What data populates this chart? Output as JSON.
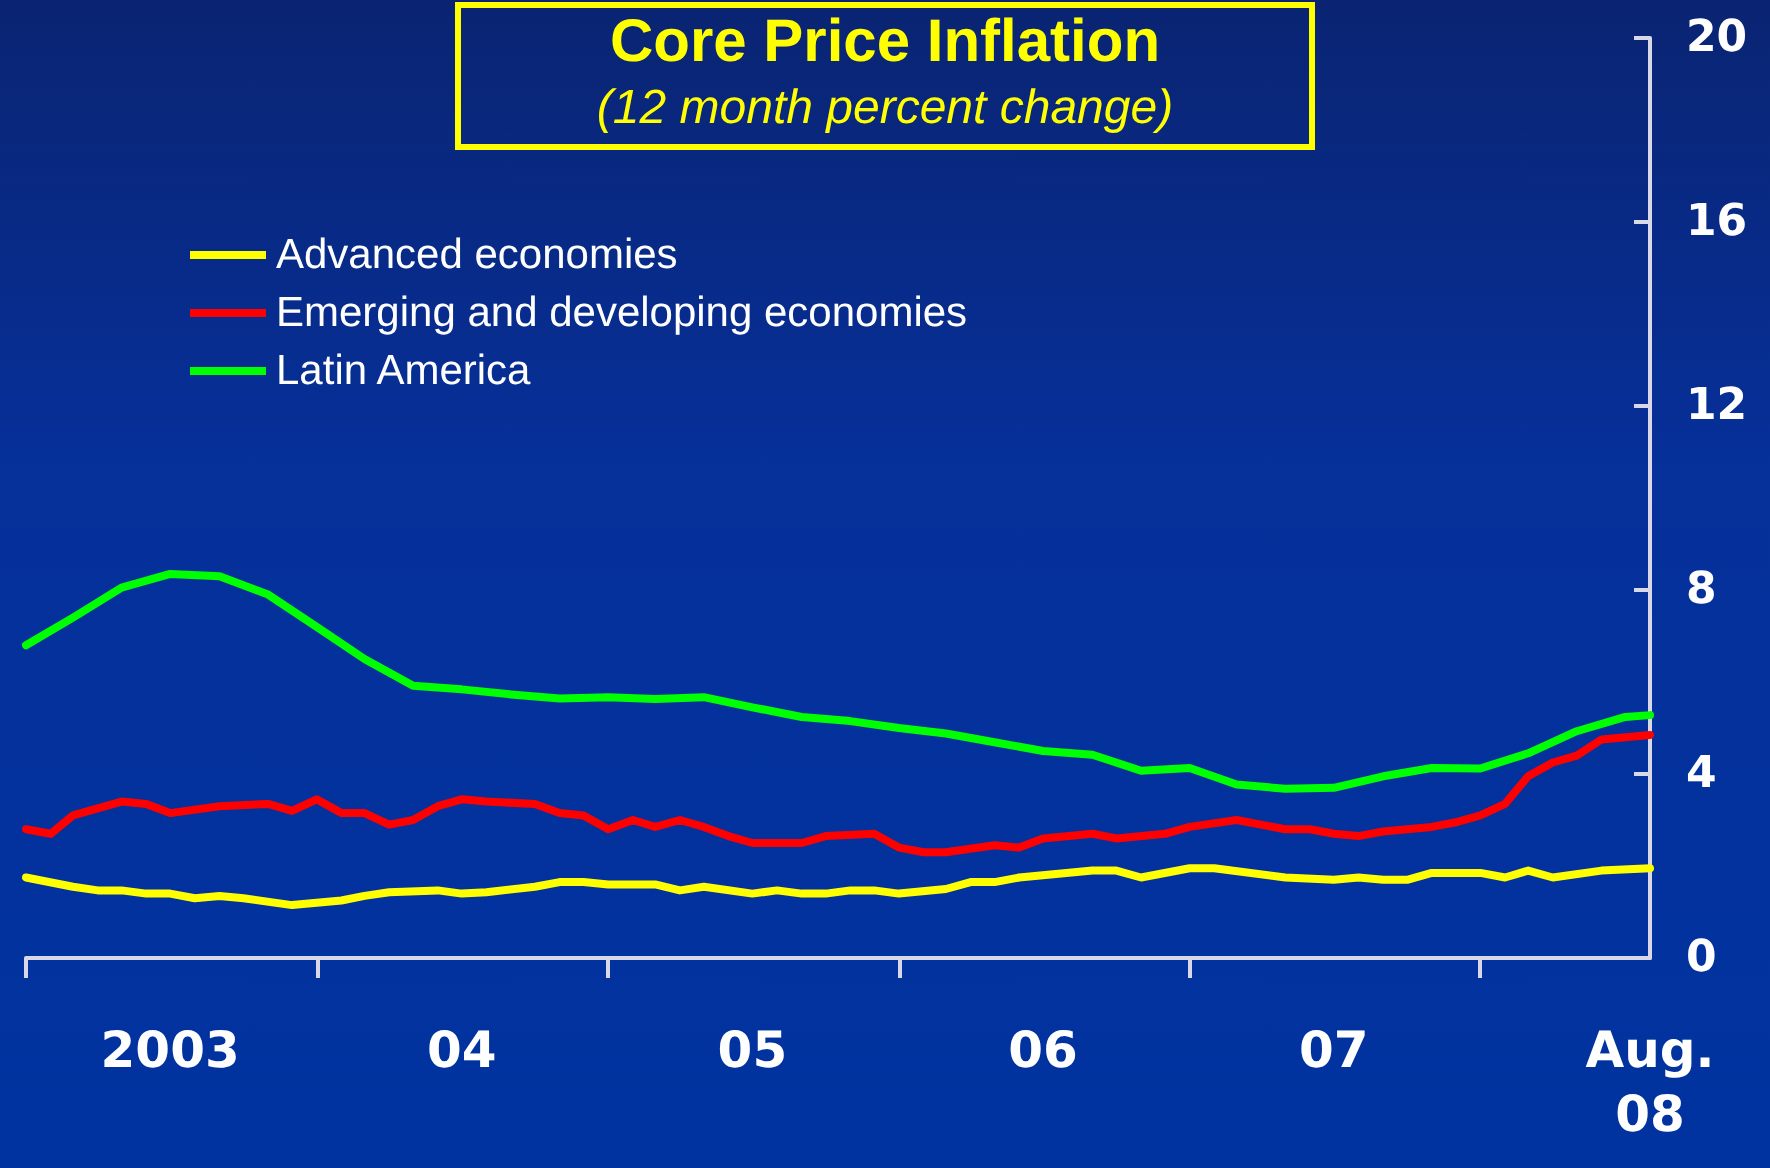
{
  "chart_data": {
    "type": "line",
    "title": "Core Price Inflation",
    "subtitle": "(12 month percent change)",
    "xlim": [
      "2003-01",
      "2008-08"
    ],
    "xticks": [
      {
        "value": "2003-01",
        "label": null
      },
      {
        "value": "2004-01",
        "label": null
      },
      {
        "value": "2005-01",
        "label": null
      },
      {
        "value": "2006-01",
        "label": null
      },
      {
        "value": "2007-01",
        "label": null
      },
      {
        "value": "2008-01",
        "label": null
      },
      {
        "value": "2003-07",
        "label": "2003"
      },
      {
        "value": "2004-07",
        "label": "04"
      },
      {
        "value": "2005-07",
        "label": "05"
      },
      {
        "value": "2006-07",
        "label": "06"
      },
      {
        "value": "2007-07",
        "label": "07"
      },
      {
        "value": "2008-08",
        "label": "Aug. 08"
      }
    ],
    "ylim": [
      0,
      20
    ],
    "yticks": [
      0,
      4,
      8,
      12,
      16,
      20
    ],
    "grid": false,
    "legend": "top left",
    "marker": "none",
    "line_style": "solid",
    "series": [
      {
        "name": "Advanced economies",
        "color": "#ffff00",
        "x": [
          "2003-01",
          "2003-03",
          "2003-04",
          "2003-05",
          "2003-06",
          "2003-07",
          "2003-08",
          "2003-09",
          "2003-10",
          "2003-12",
          "2004-02",
          "2004-03",
          "2004-04",
          "2004-06",
          "2004-07",
          "2004-08",
          "2004-10",
          "2004-11",
          "2004-12",
          "2005-01",
          "2005-03",
          "2005-04",
          "2005-05",
          "2005-07",
          "2005-08",
          "2005-09",
          "2005-10",
          "2005-11",
          "2005-12",
          "2006-01",
          "2006-03",
          "2006-04",
          "2006-05",
          "2006-06",
          "2006-09",
          "2006-10",
          "2006-11",
          "2007-01",
          "2007-02",
          "2007-05",
          "2007-07",
          "2007-08",
          "2007-09",
          "2007-10",
          "2007-11",
          "2008-01",
          "2008-02",
          "2008-03",
          "2008-04",
          "2008-06",
          "2008-08"
        ],
        "values": [
          1.75,
          1.55,
          1.47,
          1.47,
          1.4,
          1.4,
          1.3,
          1.35,
          1.3,
          1.15,
          1.25,
          1.35,
          1.43,
          1.47,
          1.4,
          1.43,
          1.55,
          1.65,
          1.65,
          1.6,
          1.6,
          1.47,
          1.55,
          1.4,
          1.47,
          1.4,
          1.4,
          1.47,
          1.47,
          1.4,
          1.5,
          1.65,
          1.65,
          1.75,
          1.9,
          1.9,
          1.75,
          1.95,
          1.95,
          1.75,
          1.7,
          1.75,
          1.7,
          1.7,
          1.85,
          1.85,
          1.75,
          1.9,
          1.75,
          1.9,
          1.95
        ]
      },
      {
        "name": "Emerging and developing economies",
        "color": "#ff0000",
        "x": [
          "2003-01",
          "2003-02",
          "2003-03",
          "2003-05",
          "2003-06",
          "2003-07",
          "2003-09",
          "2003-11",
          "2003-12",
          "2004-01",
          "2004-02",
          "2004-03",
          "2004-04",
          "2004-05",
          "2004-06",
          "2004-07",
          "2004-08",
          "2004-10",
          "2004-11",
          "2004-12",
          "2005-01",
          "2005-02",
          "2005-03",
          "2005-04",
          "2005-05",
          "2005-06",
          "2005-07",
          "2005-09",
          "2005-10",
          "2005-12",
          "2006-01",
          "2006-02",
          "2006-03",
          "2006-05",
          "2006-06",
          "2006-07",
          "2006-09",
          "2006-10",
          "2006-12",
          "2007-01",
          "2007-03",
          "2007-05",
          "2007-06",
          "2007-07",
          "2007-08",
          "2007-09",
          "2007-11",
          "2007-12",
          "2008-01",
          "2008-02",
          "2008-03",
          "2008-04",
          "2008-05",
          "2008-06",
          "2008-08"
        ],
        "values": [
          2.8,
          2.7,
          3.1,
          3.4,
          3.35,
          3.15,
          3.3,
          3.35,
          3.2,
          3.45,
          3.15,
          3.15,
          2.9,
          3.0,
          3.3,
          3.45,
          3.4,
          3.35,
          3.15,
          3.1,
          2.8,
          3.0,
          2.85,
          3.0,
          2.85,
          2.65,
          2.5,
          2.5,
          2.65,
          2.7,
          2.4,
          2.3,
          2.3,
          2.45,
          2.4,
          2.6,
          2.7,
          2.6,
          2.7,
          2.85,
          3.0,
          2.8,
          2.8,
          2.7,
          2.65,
          2.75,
          2.85,
          2.95,
          3.1,
          3.35,
          3.95,
          4.25,
          4.4,
          4.75,
          4.85
        ]
      },
      {
        "name": "Latin America",
        "color": "#00ff00",
        "x": [
          "2003-01",
          "2003-03",
          "2003-05",
          "2003-07",
          "2003-09",
          "2003-11",
          "2004-01",
          "2004-03",
          "2004-05",
          "2004-07",
          "2004-09",
          "2004-11",
          "2005-01",
          "2005-03",
          "2005-05",
          "2005-07",
          "2005-09",
          "2005-11",
          "2006-01",
          "2006-03",
          "2006-05",
          "2006-07",
          "2006-09",
          "2006-11",
          "2007-01",
          "2007-03",
          "2007-05",
          "2007-07",
          "2007-09",
          "2007-11",
          "2008-01",
          "2008-03",
          "2008-05",
          "2008-07",
          "2008-08"
        ],
        "values": [
          6.8,
          7.4,
          8.05,
          8.35,
          8.3,
          7.9,
          7.2,
          6.5,
          5.92,
          5.84,
          5.73,
          5.64,
          5.67,
          5.63,
          5.67,
          5.45,
          5.24,
          5.15,
          5.0,
          4.88,
          4.69,
          4.5,
          4.42,
          4.07,
          4.13,
          3.77,
          3.68,
          3.7,
          3.95,
          4.13,
          4.12,
          4.45,
          4.93,
          5.24,
          5.28
        ]
      }
    ]
  }
}
